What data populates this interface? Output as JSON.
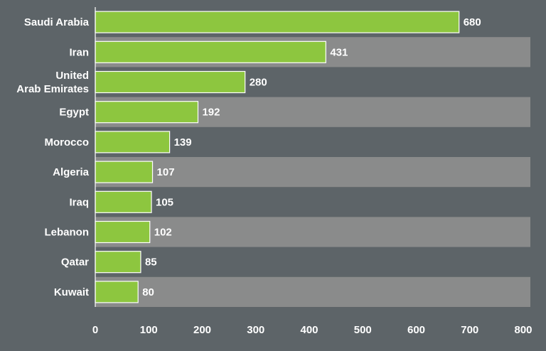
{
  "colors": {
    "background": "#5d6468",
    "band": "#8a8b8b",
    "bar": "#8dc63f",
    "bar_edge": "#ffffff",
    "text": "#ffffff"
  },
  "chart_data": {
    "type": "bar",
    "orientation": "horizontal",
    "title": "",
    "xlabel": "",
    "ylabel": "",
    "categories": [
      [
        "Saudi Arabia"
      ],
      [
        "Iran"
      ],
      [
        "United",
        "Arab Emirates"
      ],
      [
        "Egypt"
      ],
      [
        "Morocco"
      ],
      [
        "Algeria"
      ],
      [
        "Iraq"
      ],
      [
        "Lebanon"
      ],
      [
        "Qatar"
      ],
      [
        "Kuwait"
      ]
    ],
    "values": [
      680,
      431,
      280,
      192,
      139,
      107,
      105,
      102,
      85,
      80
    ],
    "xlim": [
      0,
      800
    ],
    "xticks": [
      0,
      100,
      200,
      300,
      400,
      500,
      600,
      700,
      800
    ],
    "grid": false,
    "legend": "none"
  }
}
